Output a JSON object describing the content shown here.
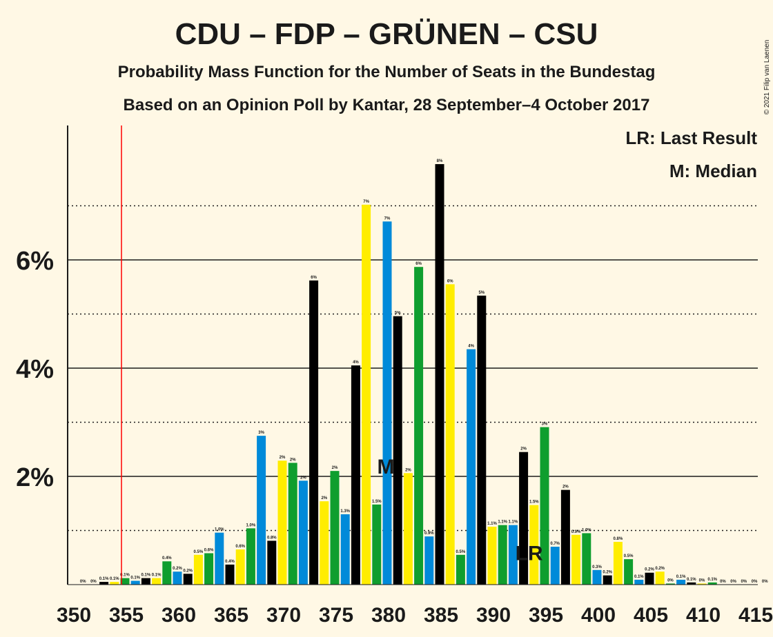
{
  "title": "CDU – FDP – GRÜNEN – CSU",
  "subtitle": "Probability Mass Function for the Number of Seats in the Bundestag",
  "subtitle2": "Based on an Opinion Poll by Kantar, 28 September–4 October 2017",
  "copyright": "© 2021 Filip van Laenen",
  "legend": {
    "lr": "LR: Last Result",
    "m": "M: Median"
  },
  "markers": {
    "median_label": "M",
    "last_result_label": "LR"
  },
  "colors": {
    "background": "#fff8e5",
    "cdu": "#000000",
    "fdp": "#ffed00",
    "gruenen": "#0f9e2e",
    "csu": "#008ad9",
    "threshold_line": "#ff0000"
  },
  "chart_data": {
    "type": "bar",
    "xlabel": "",
    "ylabel": "",
    "xlim": [
      350,
      415
    ],
    "ylim": [
      0,
      8.5
    ],
    "x_ticks": [
      350,
      355,
      360,
      365,
      370,
      375,
      380,
      385,
      390,
      395,
      400,
      405,
      410,
      415
    ],
    "y_ticks": [
      {
        "value": 2,
        "label": "2%"
      },
      {
        "value": 4,
        "label": "4%"
      },
      {
        "value": 6,
        "label": "6%"
      }
    ],
    "gridlines_solid": [
      2,
      4,
      6
    ],
    "gridlines_dotted": [
      1,
      3,
      5,
      7
    ],
    "majority_threshold": 355,
    "median": 380,
    "last_result": 393,
    "bars": [
      {
        "seats": 351,
        "value": 0.0,
        "label": "0%",
        "color": "#ffed00"
      },
      {
        "seats": 352,
        "value": 0.0,
        "label": "0%",
        "color": "#0f9e2e"
      },
      {
        "seats": 353,
        "value": 0.05,
        "label": "0.1%",
        "color": "#000000"
      },
      {
        "seats": 354,
        "value": 0.05,
        "label": "0.1%",
        "color": "#ffed00"
      },
      {
        "seats": 355,
        "value": 0.12,
        "label": "0.1%",
        "color": "#0f9e2e"
      },
      {
        "seats": 356,
        "value": 0.07,
        "label": "0.1%",
        "color": "#008ad9"
      },
      {
        "seats": 357,
        "value": 0.12,
        "label": "0.1%",
        "color": "#000000"
      },
      {
        "seats": 358,
        "value": 0.12,
        "label": "0.1%",
        "color": "#ffed00"
      },
      {
        "seats": 359,
        "value": 0.43,
        "label": "0.4%",
        "color": "#0f9e2e"
      },
      {
        "seats": 360,
        "value": 0.24,
        "label": "0.2%",
        "color": "#008ad9"
      },
      {
        "seats": 361,
        "value": 0.2,
        "label": "0.2%",
        "color": "#000000"
      },
      {
        "seats": 362,
        "value": 0.55,
        "label": "0.5%",
        "color": "#ffed00"
      },
      {
        "seats": 363,
        "value": 0.58,
        "label": "0.6%",
        "color": "#0f9e2e"
      },
      {
        "seats": 364,
        "value": 0.96,
        "label": "1.0%",
        "color": "#008ad9"
      },
      {
        "seats": 365,
        "value": 0.37,
        "label": "0.4%",
        "color": "#000000"
      },
      {
        "seats": 366,
        "value": 0.65,
        "label": "0.6%",
        "color": "#ffed00"
      },
      {
        "seats": 367,
        "value": 1.04,
        "label": "1.0%",
        "color": "#0f9e2e"
      },
      {
        "seats": 368,
        "value": 2.75,
        "label": "3%",
        "color": "#008ad9"
      },
      {
        "seats": 369,
        "value": 0.81,
        "label": "0.8%",
        "color": "#000000"
      },
      {
        "seats": 370,
        "value": 2.29,
        "label": "2%",
        "color": "#ffed00"
      },
      {
        "seats": 371,
        "value": 2.25,
        "label": "2%",
        "color": "#0f9e2e"
      },
      {
        "seats": 372,
        "value": 1.92,
        "label": "2%",
        "color": "#008ad9"
      },
      {
        "seats": 373,
        "value": 5.62,
        "label": "6%",
        "color": "#000000"
      },
      {
        "seats": 374,
        "value": 1.54,
        "label": "2%",
        "color": "#ffed00"
      },
      {
        "seats": 375,
        "value": 2.1,
        "label": "2%",
        "color": "#0f9e2e"
      },
      {
        "seats": 376,
        "value": 1.3,
        "label": "1.3%",
        "color": "#008ad9"
      },
      {
        "seats": 377,
        "value": 4.05,
        "label": "4%",
        "color": "#000000"
      },
      {
        "seats": 378,
        "value": 7.02,
        "label": "7%",
        "color": "#ffed00"
      },
      {
        "seats": 379,
        "value": 1.48,
        "label": "1.5%",
        "color": "#0f9e2e"
      },
      {
        "seats": 380,
        "value": 6.71,
        "label": "7%",
        "color": "#008ad9"
      },
      {
        "seats": 381,
        "value": 4.96,
        "label": "5%",
        "color": "#000000"
      },
      {
        "seats": 382,
        "value": 2.06,
        "label": "2%",
        "color": "#ffed00"
      },
      {
        "seats": 383,
        "value": 5.87,
        "label": "6%",
        "color": "#0f9e2e"
      },
      {
        "seats": 384,
        "value": 0.89,
        "label": "0.9%",
        "color": "#008ad9"
      },
      {
        "seats": 385,
        "value": 7.77,
        "label": "8%",
        "color": "#000000"
      },
      {
        "seats": 386,
        "value": 5.55,
        "label": "6%",
        "color": "#ffed00"
      },
      {
        "seats": 387,
        "value": 0.55,
        "label": "0.5%",
        "color": "#0f9e2e"
      },
      {
        "seats": 388,
        "value": 4.35,
        "label": "4%",
        "color": "#008ad9"
      },
      {
        "seats": 389,
        "value": 5.34,
        "label": "5%",
        "color": "#000000"
      },
      {
        "seats": 390,
        "value": 1.07,
        "label": "1.1%",
        "color": "#ffed00"
      },
      {
        "seats": 391,
        "value": 1.1,
        "label": "1.1%",
        "color": "#0f9e2e"
      },
      {
        "seats": 392,
        "value": 1.1,
        "label": "1.1%",
        "color": "#008ad9"
      },
      {
        "seats": 393,
        "value": 2.45,
        "label": "2%",
        "color": "#000000"
      },
      {
        "seats": 394,
        "value": 1.47,
        "label": "1.5%",
        "color": "#ffed00"
      },
      {
        "seats": 395,
        "value": 2.91,
        "label": "3%",
        "color": "#0f9e2e"
      },
      {
        "seats": 396,
        "value": 0.7,
        "label": "0.7%",
        "color": "#008ad9"
      },
      {
        "seats": 397,
        "value": 1.75,
        "label": "2%",
        "color": "#000000"
      },
      {
        "seats": 398,
        "value": 0.92,
        "label": "0.9%",
        "color": "#ffed00"
      },
      {
        "seats": 399,
        "value": 0.95,
        "label": "1.0%",
        "color": "#0f9e2e"
      },
      {
        "seats": 400,
        "value": 0.27,
        "label": "0.3%",
        "color": "#008ad9"
      },
      {
        "seats": 401,
        "value": 0.17,
        "label": "0.2%",
        "color": "#000000"
      },
      {
        "seats": 402,
        "value": 0.79,
        "label": "0.8%",
        "color": "#ffed00"
      },
      {
        "seats": 403,
        "value": 0.47,
        "label": "0.5%",
        "color": "#0f9e2e"
      },
      {
        "seats": 404,
        "value": 0.09,
        "label": "0.1%",
        "color": "#008ad9"
      },
      {
        "seats": 405,
        "value": 0.22,
        "label": "0.2%",
        "color": "#000000"
      },
      {
        "seats": 406,
        "value": 0.24,
        "label": "0.2%",
        "color": "#ffed00"
      },
      {
        "seats": 407,
        "value": 0.02,
        "label": "0%",
        "color": "#0f9e2e"
      },
      {
        "seats": 408,
        "value": 0.09,
        "label": "0.1%",
        "color": "#008ad9"
      },
      {
        "seats": 409,
        "value": 0.04,
        "label": "0.1%",
        "color": "#000000"
      },
      {
        "seats": 410,
        "value": 0.02,
        "label": "0%",
        "color": "#ffed00"
      },
      {
        "seats": 411,
        "value": 0.04,
        "label": "0.1%",
        "color": "#0f9e2e"
      },
      {
        "seats": 412,
        "value": 0.0,
        "label": "0%",
        "color": "#008ad9"
      },
      {
        "seats": 413,
        "value": 0.0,
        "label": "0%",
        "color": "#000000"
      },
      {
        "seats": 414,
        "value": 0.0,
        "label": "0%",
        "color": "#ffed00"
      },
      {
        "seats": 415,
        "value": 0.0,
        "label": "0%",
        "color": "#0f9e2e"
      },
      {
        "seats": 416,
        "value": 0.0,
        "label": "0%",
        "color": "#008ad9"
      }
    ]
  }
}
